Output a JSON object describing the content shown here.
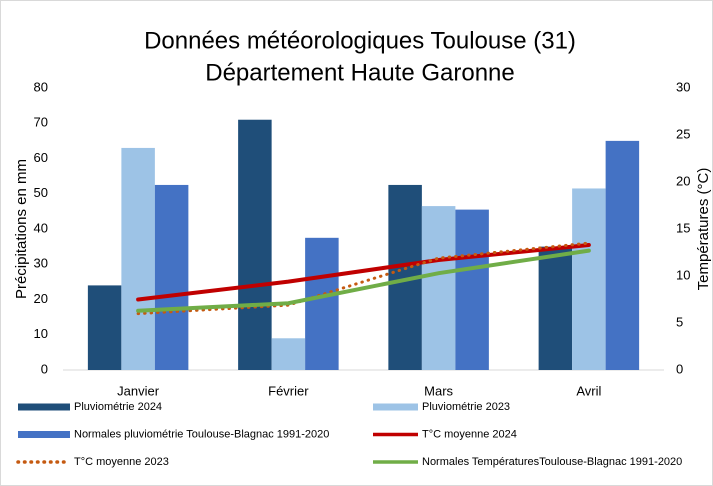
{
  "chart_data": {
    "type": "bar-line",
    "title": "Données météorologiques Toulouse (31)",
    "subtitle": "Département Haute Garonne",
    "y_label": "Précipitations en mm",
    "y2_label": "Températures (°C)",
    "categories": [
      "Janvier",
      "Février",
      "Mars",
      "Avril"
    ],
    "ylim": [
      0,
      80
    ],
    "yticks": [
      0,
      10,
      20,
      30,
      40,
      50,
      60,
      70,
      80
    ],
    "y2lim": [
      0,
      30
    ],
    "y2ticks": [
      0,
      5,
      10,
      15,
      20,
      25,
      30
    ],
    "series": [
      {
        "name": "Pluviométrie 2024",
        "type": "bar",
        "color": "#1f4e79",
        "values": [
          24,
          71,
          52.5,
          35
        ]
      },
      {
        "name": "Pluviométrie 2023",
        "type": "bar",
        "color": "#9dc3e6",
        "values": [
          63,
          9,
          46.5,
          51.5
        ]
      },
      {
        "name": "Normales pluviométrie Toulouse-Blagnac 1991-2020",
        "type": "bar",
        "color": "#4472c4",
        "values": [
          52.5,
          37.5,
          45.5,
          65
        ]
      },
      {
        "name": "T°C moyenne 2024",
        "type": "line",
        "axis": "y2",
        "color": "#c00000",
        "values": [
          7.5,
          9.4,
          11.7,
          13.3
        ]
      },
      {
        "name": "T°C moyenne 2023",
        "type": "line",
        "axis": "y2",
        "dash": "dotted",
        "color": "#c55a11",
        "values": [
          6.0,
          6.9,
          11.9,
          13.5
        ]
      },
      {
        "name": "Normales TempératuresToulouse-Blagnac 1991-2020",
        "type": "line",
        "axis": "y2",
        "color": "#70ad47",
        "values": [
          6.3,
          7.1,
          10.3,
          12.7
        ]
      }
    ]
  }
}
